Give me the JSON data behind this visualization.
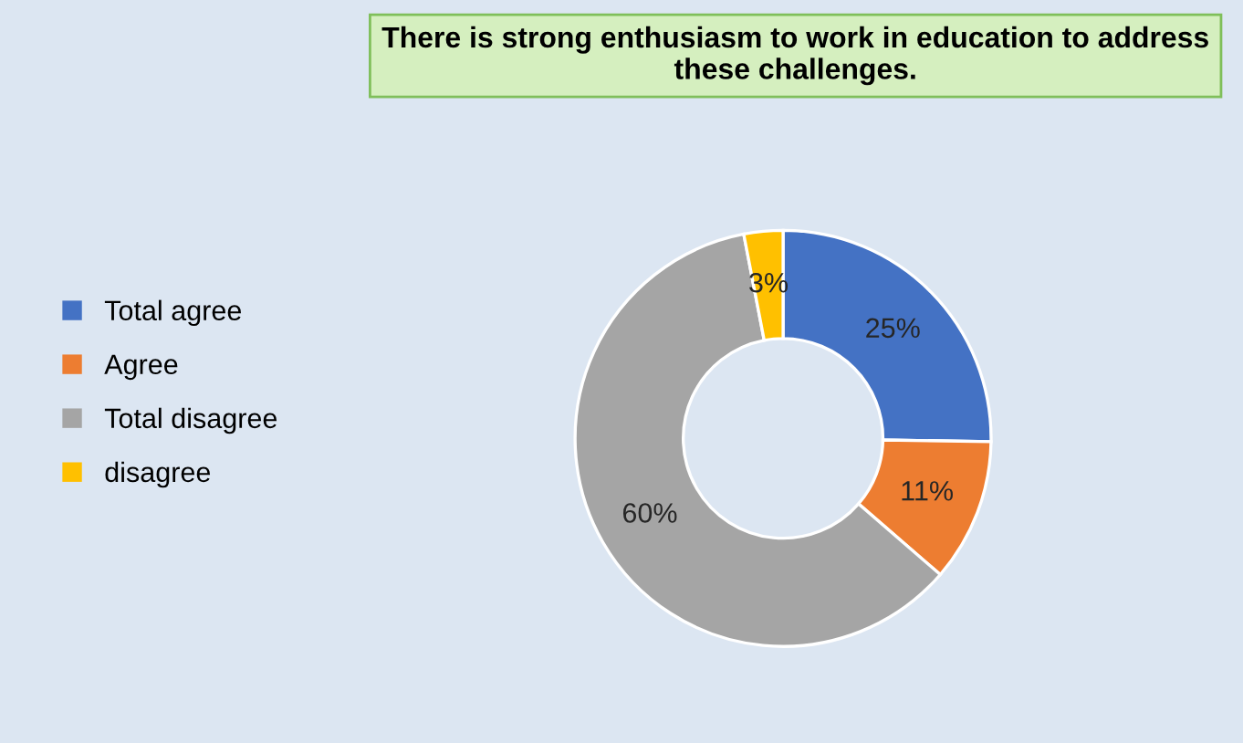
{
  "chart_data": {
    "type": "donut",
    "title": "There is strong enthusiasm to work in education to address these challenges.",
    "categories": [
      "Total agree",
      "Agree",
      "Total disagree",
      "disagree"
    ],
    "values": [
      25,
      11,
      60,
      3
    ],
    "colors": [
      "#4472c4",
      "#ed7d31",
      "#a5a5a5",
      "#ffc000"
    ],
    "value_labels": [
      "25%",
      "11%",
      "60%",
      "3%"
    ],
    "legend": "left"
  }
}
